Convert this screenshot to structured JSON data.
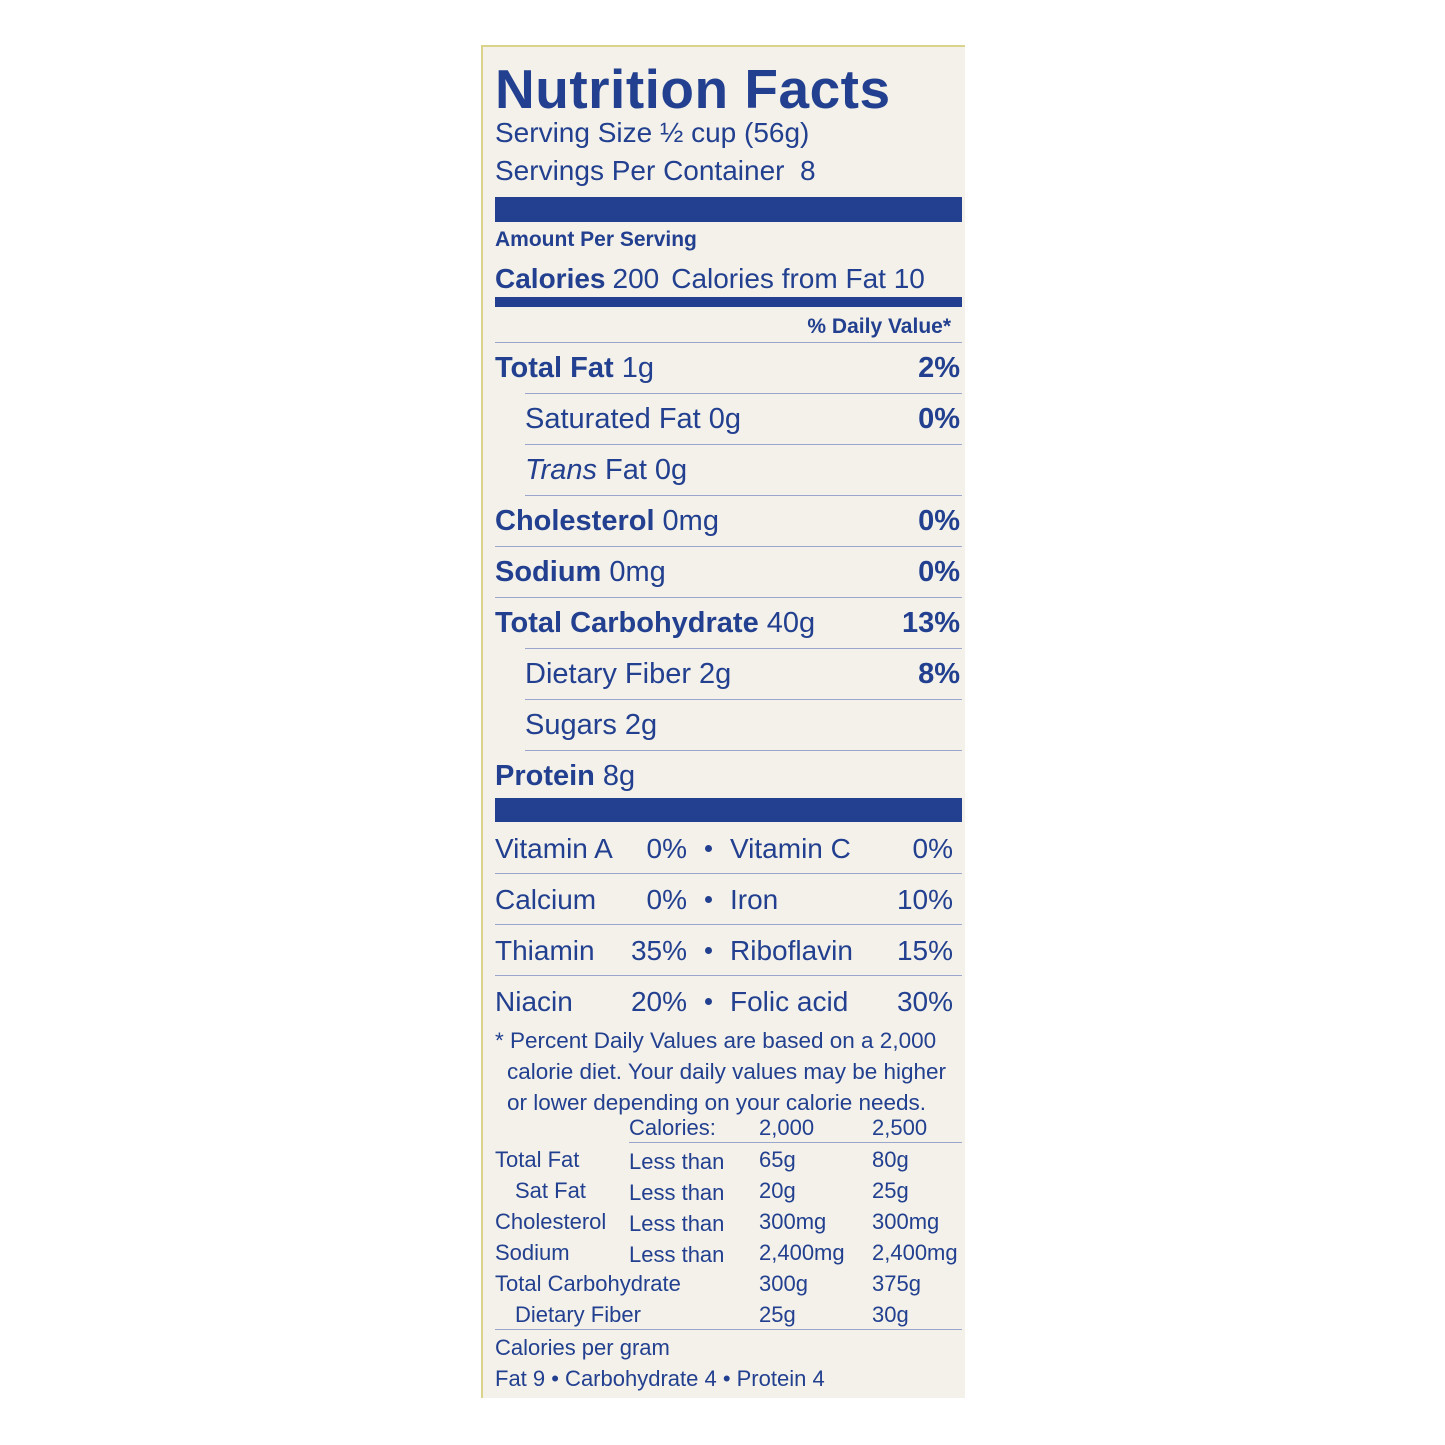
{
  "title": "Nutrition Facts",
  "serving_size": "Serving Size ½ cup (56g)",
  "servings_per_container": "Servings Per Container  8",
  "amount_per_serving": "Amount Per Serving",
  "calories": {
    "label": "Calories",
    "value": "200",
    "from_fat": "Calories from Fat 10"
  },
  "daily_value_header": "% Daily Value*",
  "nutrients": [
    {
      "name": "Total Fat",
      "amount": "1g",
      "dv": "2%",
      "bold": true
    },
    {
      "name": "Saturated Fat",
      "amount": "0g",
      "dv": "0%",
      "indent": true
    },
    {
      "italic": "Trans",
      "name": "Fat",
      "amount": "0g",
      "indent": true
    },
    {
      "name": "Cholesterol",
      "amount": "0mg",
      "dv": "0%",
      "bold": true
    },
    {
      "name": "Sodium",
      "amount": "0mg",
      "dv": "0%",
      "bold": true
    },
    {
      "name": "Total Carbohydrate",
      "amount": "40g",
      "dv": "13%",
      "bold": true
    },
    {
      "name": "Dietary Fiber",
      "amount": "2g",
      "dv": "8%",
      "indent": true
    },
    {
      "name": "Sugars",
      "amount": "2g",
      "indent": true
    },
    {
      "name": "Protein",
      "amount": "8g",
      "bold": true
    }
  ],
  "vitamins": [
    [
      "Vitamin A",
      "0%",
      "Vitamin C",
      "0%"
    ],
    [
      "Calcium",
      "0%",
      "Iron",
      "10%"
    ],
    [
      "Thiamin",
      "35%",
      "Riboflavin",
      "15%"
    ],
    [
      "Niacin",
      "20%",
      "Folic acid",
      "30%"
    ]
  ],
  "footnote": "* Percent Daily Values are based on a 2,000 calorie diet. Your daily values may be higher or lower depending on your calorie needs.",
  "daily_table": {
    "header": [
      "Calories:",
      "2,000",
      "2,500"
    ],
    "rows": [
      {
        "name": "Total Fat",
        "limit": "Less than",
        "v1": "65g",
        "v2": "80g"
      },
      {
        "name": "Sat Fat",
        "limit": "Less than",
        "v1": "20g",
        "v2": "25g",
        "indent": true
      },
      {
        "name": "Cholesterol",
        "limit": "Less than",
        "v1": "300mg",
        "v2": "300mg"
      },
      {
        "name": "Sodium",
        "limit": "Less than",
        "v1": "2,400mg",
        "v2": "2,400mg"
      },
      {
        "name": "Total Carbohydrate",
        "v1": "300g",
        "v2": "375g"
      },
      {
        "name": "Dietary Fiber",
        "v1": "25g",
        "v2": "30g",
        "indent": true
      }
    ]
  },
  "calories_per_gram": "Calories per gram",
  "calories_per_gram_values": "Fat 9 • Carbohydrate 4 • Protein 4"
}
